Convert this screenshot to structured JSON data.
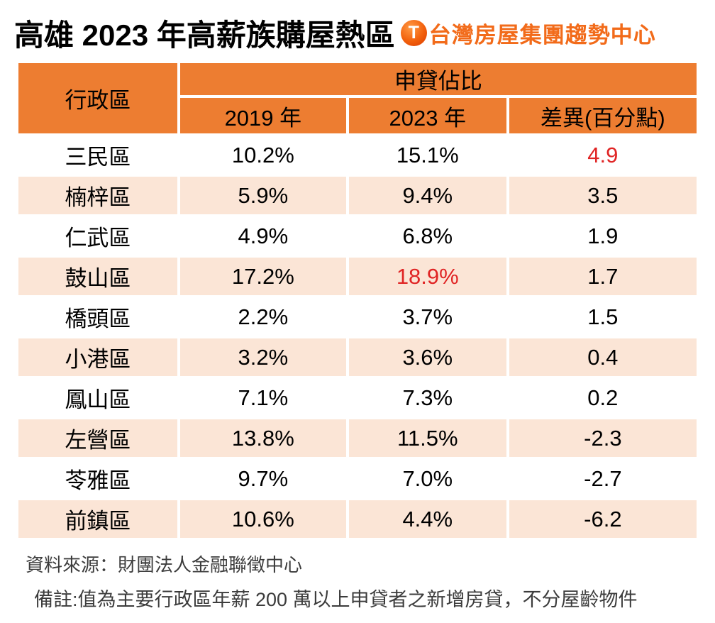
{
  "title": "高雄 2023 年高薪族購屋熱區",
  "logo": {
    "icon_letter": "T",
    "text": "台灣房屋集團趨勢中心"
  },
  "colors": {
    "header_bg": "#ED7D31",
    "row_alt_bg": "#FBE5D6",
    "highlight_red": "#E02424",
    "logo_orange": "#F26B1A",
    "text_black": "#000000"
  },
  "chart_data": {
    "type": "table",
    "title": "高雄 2023 年高薪族購屋熱區",
    "column_group_header": "申貸佔比",
    "columns": [
      "行政區",
      "2019 年",
      "2023 年",
      "差異(百分點)"
    ],
    "rows": [
      {
        "cells": [
          "三民區",
          "10.2%",
          "15.1%",
          "4.9"
        ],
        "red_cell_indexes": [
          3
        ]
      },
      {
        "cells": [
          "楠梓區",
          "5.9%",
          "9.4%",
          "3.5"
        ],
        "red_cell_indexes": []
      },
      {
        "cells": [
          "仁武區",
          "4.9%",
          "6.8%",
          "1.9"
        ],
        "red_cell_indexes": []
      },
      {
        "cells": [
          "鼓山區",
          "17.2%",
          "18.9%",
          "1.7"
        ],
        "red_cell_indexes": [
          2
        ]
      },
      {
        "cells": [
          "橋頭區",
          "2.2%",
          "3.7%",
          "1.5"
        ],
        "red_cell_indexes": []
      },
      {
        "cells": [
          "小港區",
          "3.2%",
          "3.6%",
          "0.4"
        ],
        "red_cell_indexes": []
      },
      {
        "cells": [
          "鳳山區",
          "7.1%",
          "7.3%",
          "0.2"
        ],
        "red_cell_indexes": []
      },
      {
        "cells": [
          "左營區",
          "13.8%",
          "11.5%",
          "-2.3"
        ],
        "red_cell_indexes": []
      },
      {
        "cells": [
          "苓雅區",
          "9.7%",
          "7.0%",
          "-2.7"
        ],
        "red_cell_indexes": []
      },
      {
        "cells": [
          "前鎮區",
          "10.6%",
          "4.4%",
          "-6.2"
        ],
        "red_cell_indexes": []
      }
    ]
  },
  "footer": {
    "source": "資料來源：財團法人金融聯徵中心",
    "note": "備註:值為主要行政區年薪 200 萬以上申貸者之新增房貸，不分屋齡物件"
  }
}
